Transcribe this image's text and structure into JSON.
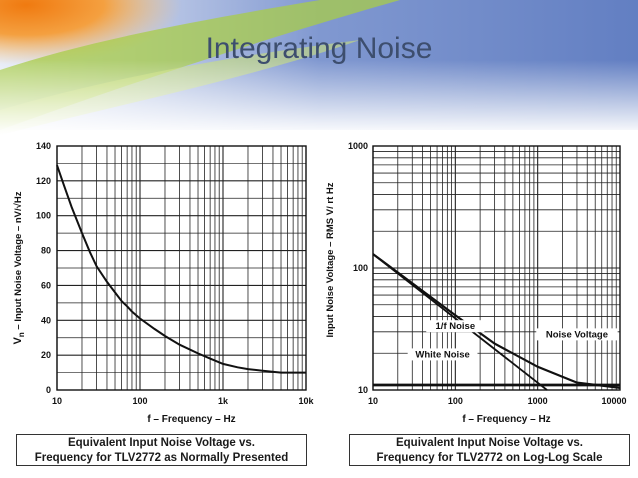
{
  "slide": {
    "title": "Integrating Noise"
  },
  "captions": {
    "left": [
      "Equivalent Input Noise Voltage vs.",
      "Frequency for TLV2772 as Normally Presented"
    ],
    "right": [
      "Equivalent Input Noise Voltage vs.",
      "Frequency for TLV2772 on Log-Log Scale"
    ]
  },
  "colors": {
    "title": "#3d4e6e",
    "curve": "#111111",
    "grid": "#222222",
    "bg_orange": "#f08a1e",
    "bg_green": "#9cc43c",
    "bg_blue": "#6a86c8"
  },
  "chart_data": [
    {
      "type": "line",
      "xscale": "log",
      "yscale": "linear",
      "xlim": [
        10,
        10000
      ],
      "ylim": [
        0,
        140
      ],
      "x_ticks": [
        "10",
        "100",
        "1k",
        "10k"
      ],
      "y_ticks": [
        "0",
        "20",
        "40",
        "60",
        "80",
        "100",
        "120",
        "140"
      ],
      "xlabel": "f – Frequency – Hz",
      "ylabel_main": "V",
      "ylabel_sub": "n",
      "ylabel_rest": " – Input Noise Voltage – nV/√Hz",
      "grid": true,
      "series": [
        {
          "x": [
            10,
            12,
            15,
            20,
            25,
            30,
            40,
            50,
            60,
            70,
            80,
            100,
            150,
            200,
            300,
            500,
            700,
            1000,
            1500,
            2000,
            3000,
            5000,
            10000
          ],
          "y": [
            129,
            118,
            105,
            90,
            79,
            71,
            62,
            56,
            51,
            48,
            45,
            41,
            35,
            31,
            26,
            21,
            18,
            15,
            13,
            12,
            11,
            10,
            10
          ]
        }
      ]
    },
    {
      "type": "line",
      "xscale": "log",
      "yscale": "log",
      "xlim": [
        10,
        10000
      ],
      "ylim": [
        10,
        1000
      ],
      "x_ticks": [
        "10",
        "100",
        "1000",
        "10000"
      ],
      "y_ticks": [
        "10",
        "100",
        "1000"
      ],
      "xlabel": "f – Frequency – Hz",
      "ylabel": "Input Noise Voltage – RMS V/ rt Hz",
      "grid": true,
      "annotations": [
        "1/f Noise",
        "White Noise",
        "Noise Voltage"
      ],
      "series": [
        {
          "x": [
            10,
            100,
            300,
            1000,
            3000,
            10000
          ],
          "y": [
            130,
            41,
            24,
            15.5,
            11.5,
            10.4
          ]
        },
        {
          "x": [
            10,
            1300
          ],
          "y": [
            130,
            10
          ]
        },
        {
          "x": [
            10,
            10000
          ],
          "y": [
            11,
            11
          ]
        }
      ]
    }
  ]
}
